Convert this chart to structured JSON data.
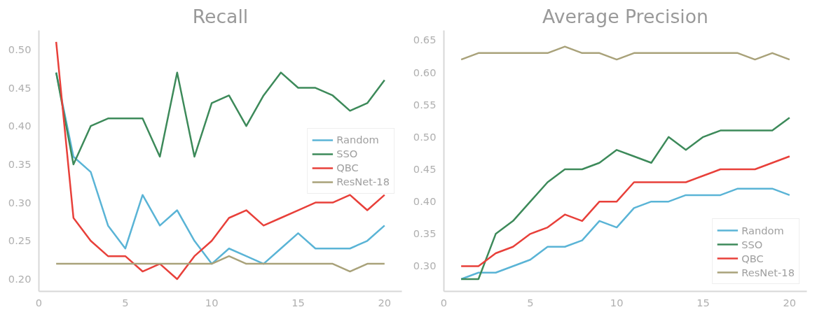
{
  "chart_data": [
    {
      "type": "line",
      "title": "Recall",
      "x": [
        1,
        2,
        3,
        4,
        5,
        6,
        7,
        8,
        9,
        10,
        11,
        12,
        13,
        14,
        15,
        16,
        17,
        18,
        19,
        20
      ],
      "xlim": [
        0,
        21
      ],
      "xticks": [
        0,
        5,
        10,
        15,
        20
      ],
      "ylim": [
        0.184,
        0.525
      ],
      "yticks": [
        {
          "value": 0.2,
          "label": "0.20"
        },
        {
          "value": 0.25,
          "label": "0.25"
        },
        {
          "value": 0.3,
          "label": "0.30"
        },
        {
          "value": 0.35,
          "label": "0.35"
        },
        {
          "value": 0.4,
          "label": "0.40"
        },
        {
          "value": 0.45,
          "label": "0.45"
        },
        {
          "value": 0.5,
          "label": "0.50"
        }
      ],
      "grid": false,
      "legend": "right",
      "marker": "none",
      "line_style": "solid",
      "series": [
        {
          "name": "Random",
          "color": "#5ab4d6",
          "values": [
            0.47,
            0.36,
            0.34,
            0.27,
            0.24,
            0.31,
            0.27,
            0.29,
            0.25,
            0.22,
            0.24,
            0.23,
            0.22,
            0.24,
            0.26,
            0.24,
            0.24,
            0.24,
            0.25,
            0.27
          ]
        },
        {
          "name": "SSO",
          "color": "#3d8a5a",
          "values": [
            0.47,
            0.35,
            0.4,
            0.41,
            0.41,
            0.41,
            0.36,
            0.47,
            0.36,
            0.43,
            0.44,
            0.4,
            0.44,
            0.47,
            0.45,
            0.45,
            0.44,
            0.42,
            0.43,
            0.46
          ]
        },
        {
          "name": "QBC",
          "color": "#e8403a",
          "values": [
            0.51,
            0.28,
            0.25,
            0.23,
            0.23,
            0.21,
            0.22,
            0.2,
            0.23,
            0.25,
            0.28,
            0.29,
            0.27,
            0.28,
            0.29,
            0.3,
            0.3,
            0.31,
            0.29,
            0.31
          ]
        },
        {
          "name": "ResNet-18",
          "color": "#a9a27a",
          "values": [
            0.22,
            0.22,
            0.22,
            0.22,
            0.22,
            0.22,
            0.22,
            0.22,
            0.22,
            0.22,
            0.23,
            0.22,
            0.22,
            0.22,
            0.22,
            0.22,
            0.22,
            0.21,
            0.22,
            0.22
          ]
        }
      ]
    },
    {
      "type": "line",
      "title": "Average Precision",
      "x": [
        1,
        2,
        3,
        4,
        5,
        6,
        7,
        8,
        9,
        10,
        11,
        12,
        13,
        14,
        15,
        16,
        17,
        18,
        19,
        20
      ],
      "xlim": [
        0,
        21
      ],
      "xticks": [
        0,
        5,
        10,
        15,
        20
      ],
      "ylim": [
        0.261,
        0.665
      ],
      "yticks": [
        {
          "value": 0.3,
          "label": "0.30"
        },
        {
          "value": 0.35,
          "label": "0.35"
        },
        {
          "value": 0.4,
          "label": "0.40"
        },
        {
          "value": 0.45,
          "label": "0.45"
        },
        {
          "value": 0.5,
          "label": "0.50"
        },
        {
          "value": 0.55,
          "label": "0.55"
        },
        {
          "value": 0.6,
          "label": "0.60"
        },
        {
          "value": 0.65,
          "label": "0.65"
        }
      ],
      "grid": false,
      "legend": "bottom right",
      "marker": "none",
      "line_style": "solid",
      "series": [
        {
          "name": "Random",
          "color": "#5ab4d6",
          "values": [
            0.28,
            0.29,
            0.29,
            0.3,
            0.31,
            0.33,
            0.33,
            0.34,
            0.37,
            0.36,
            0.39,
            0.4,
            0.4,
            0.41,
            0.41,
            0.41,
            0.42,
            0.42,
            0.42,
            0.41
          ]
        },
        {
          "name": "SSO",
          "color": "#3d8a5a",
          "values": [
            0.28,
            0.28,
            0.35,
            0.37,
            0.4,
            0.43,
            0.45,
            0.45,
            0.46,
            0.48,
            0.47,
            0.46,
            0.5,
            0.48,
            0.5,
            0.51,
            0.51,
            0.51,
            0.51,
            0.53
          ]
        },
        {
          "name": "QBC",
          "color": "#e8403a",
          "values": [
            0.3,
            0.3,
            0.32,
            0.33,
            0.35,
            0.36,
            0.38,
            0.37,
            0.4,
            0.4,
            0.43,
            0.43,
            0.43,
            0.43,
            0.44,
            0.45,
            0.45,
            0.45,
            0.46,
            0.47
          ]
        },
        {
          "name": "ResNet-18",
          "color": "#a9a27a",
          "values": [
            0.62,
            0.63,
            0.63,
            0.63,
            0.63,
            0.63,
            0.64,
            0.63,
            0.63,
            0.62,
            0.63,
            0.63,
            0.63,
            0.63,
            0.63,
            0.63,
            0.63,
            0.62,
            0.63,
            0.62
          ]
        }
      ]
    }
  ]
}
